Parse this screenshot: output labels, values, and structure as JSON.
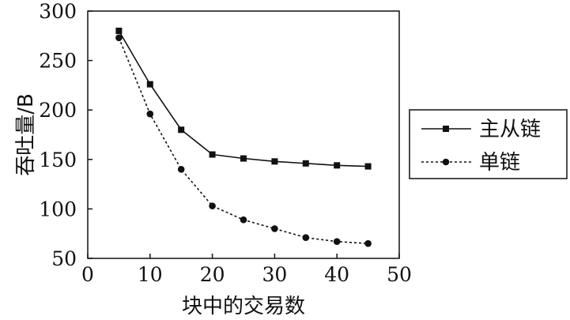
{
  "chart_data": {
    "type": "line",
    "title": "",
    "xlabel": "块中的交易数",
    "ylabel": "吞吐量/B",
    "xlim": [
      0,
      50
    ],
    "ylim": [
      50,
      300
    ],
    "xticks": [
      0,
      10,
      20,
      30,
      40,
      50
    ],
    "yticks": [
      50,
      100,
      150,
      200,
      250,
      300
    ],
    "x": [
      5,
      10,
      15,
      20,
      25,
      30,
      35,
      40,
      45
    ],
    "grid": false,
    "legend_position": "right",
    "series": [
      {
        "name": "主从链",
        "values": [
          280,
          226,
          180,
          155,
          151,
          148,
          146,
          144,
          143
        ],
        "line_style": "solid",
        "marker": "square",
        "color": "#111111"
      },
      {
        "name": "单链",
        "values": [
          273,
          196,
          140,
          103,
          89,
          80,
          71,
          67,
          65
        ],
        "line_style": "dotted",
        "marker": "circle",
        "color": "#111111"
      }
    ]
  }
}
